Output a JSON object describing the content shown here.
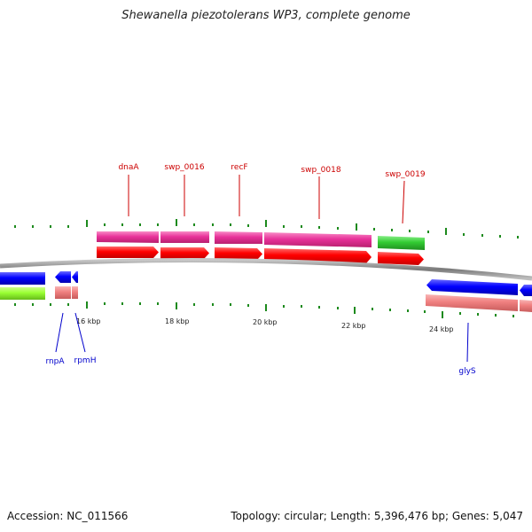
{
  "title": "Shewanella piezotolerans WP3, complete genome",
  "footer": {
    "accession": "Accession: NC_011566",
    "summary": "Topology: circular; Length: 5,396,476 bp; Genes: 5,047"
  },
  "colors": {
    "backbone": "#8a8a8a",
    "forward_cds": "#ff0000",
    "forward_gene": "#ee3a9c",
    "reverse_cds": "#0000ff",
    "reverse_gene": "#f08080",
    "rna_gene": "#33cc33",
    "lime_gene": "#99ff33",
    "tick": "#1d8a1d",
    "label_forward": "#cc0000",
    "label_reverse": "#0000cc"
  },
  "tick_labels": [
    "16 kbp",
    "18 kbp",
    "20 kbp",
    "22 kbp",
    "24 kbp"
  ],
  "gene_labels": {
    "forward": [
      "dnaA",
      "swp_0016",
      "recF",
      "swp_0018",
      "swp_0019"
    ],
    "reverse": [
      "rnpA",
      "rpmH",
      "glyS"
    ]
  }
}
